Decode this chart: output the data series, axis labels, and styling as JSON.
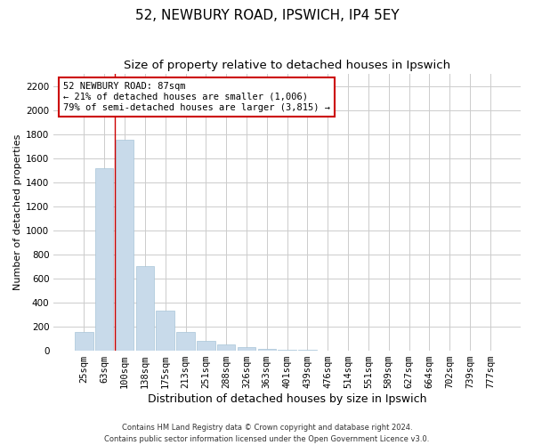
{
  "title1": "52, NEWBURY ROAD, IPSWICH, IP4 5EY",
  "title2": "Size of property relative to detached houses in Ipswich",
  "xlabel": "Distribution of detached houses by size in Ipswich",
  "ylabel": "Number of detached properties",
  "categories": [
    "25sqm",
    "63sqm",
    "100sqm",
    "138sqm",
    "175sqm",
    "213sqm",
    "251sqm",
    "288sqm",
    "326sqm",
    "363sqm",
    "401sqm",
    "439sqm",
    "476sqm",
    "514sqm",
    "551sqm",
    "589sqm",
    "627sqm",
    "664sqm",
    "702sqm",
    "739sqm",
    "777sqm"
  ],
  "values": [
    155,
    1520,
    1750,
    700,
    330,
    155,
    85,
    50,
    30,
    18,
    10,
    5,
    2,
    1,
    1,
    0,
    0,
    0,
    0,
    0,
    0
  ],
  "bar_color": "#c8daea",
  "bar_edge_color": "#a8c4d8",
  "grid_color": "#cccccc",
  "background_color": "#ffffff",
  "vline_x": 1.5,
  "vline_color": "#cc0000",
  "annotation_text": "52 NEWBURY ROAD: 87sqm\n← 21% of detached houses are smaller (1,006)\n79% of semi-detached houses are larger (3,815) →",
  "annotation_box_facecolor": "#ffffff",
  "annotation_box_edgecolor": "#cc0000",
  "ylim": [
    0,
    2300
  ],
  "yticks": [
    0,
    200,
    400,
    600,
    800,
    1000,
    1200,
    1400,
    1600,
    1800,
    2000,
    2200
  ],
  "footer": "Contains HM Land Registry data © Crown copyright and database right 2024.\nContains public sector information licensed under the Open Government Licence v3.0.",
  "title1_fontsize": 11,
  "title2_fontsize": 9.5,
  "ylabel_fontsize": 8,
  "xlabel_fontsize": 9,
  "tick_fontsize": 7.5,
  "footer_fontsize": 6,
  "ann_fontsize": 7.5
}
